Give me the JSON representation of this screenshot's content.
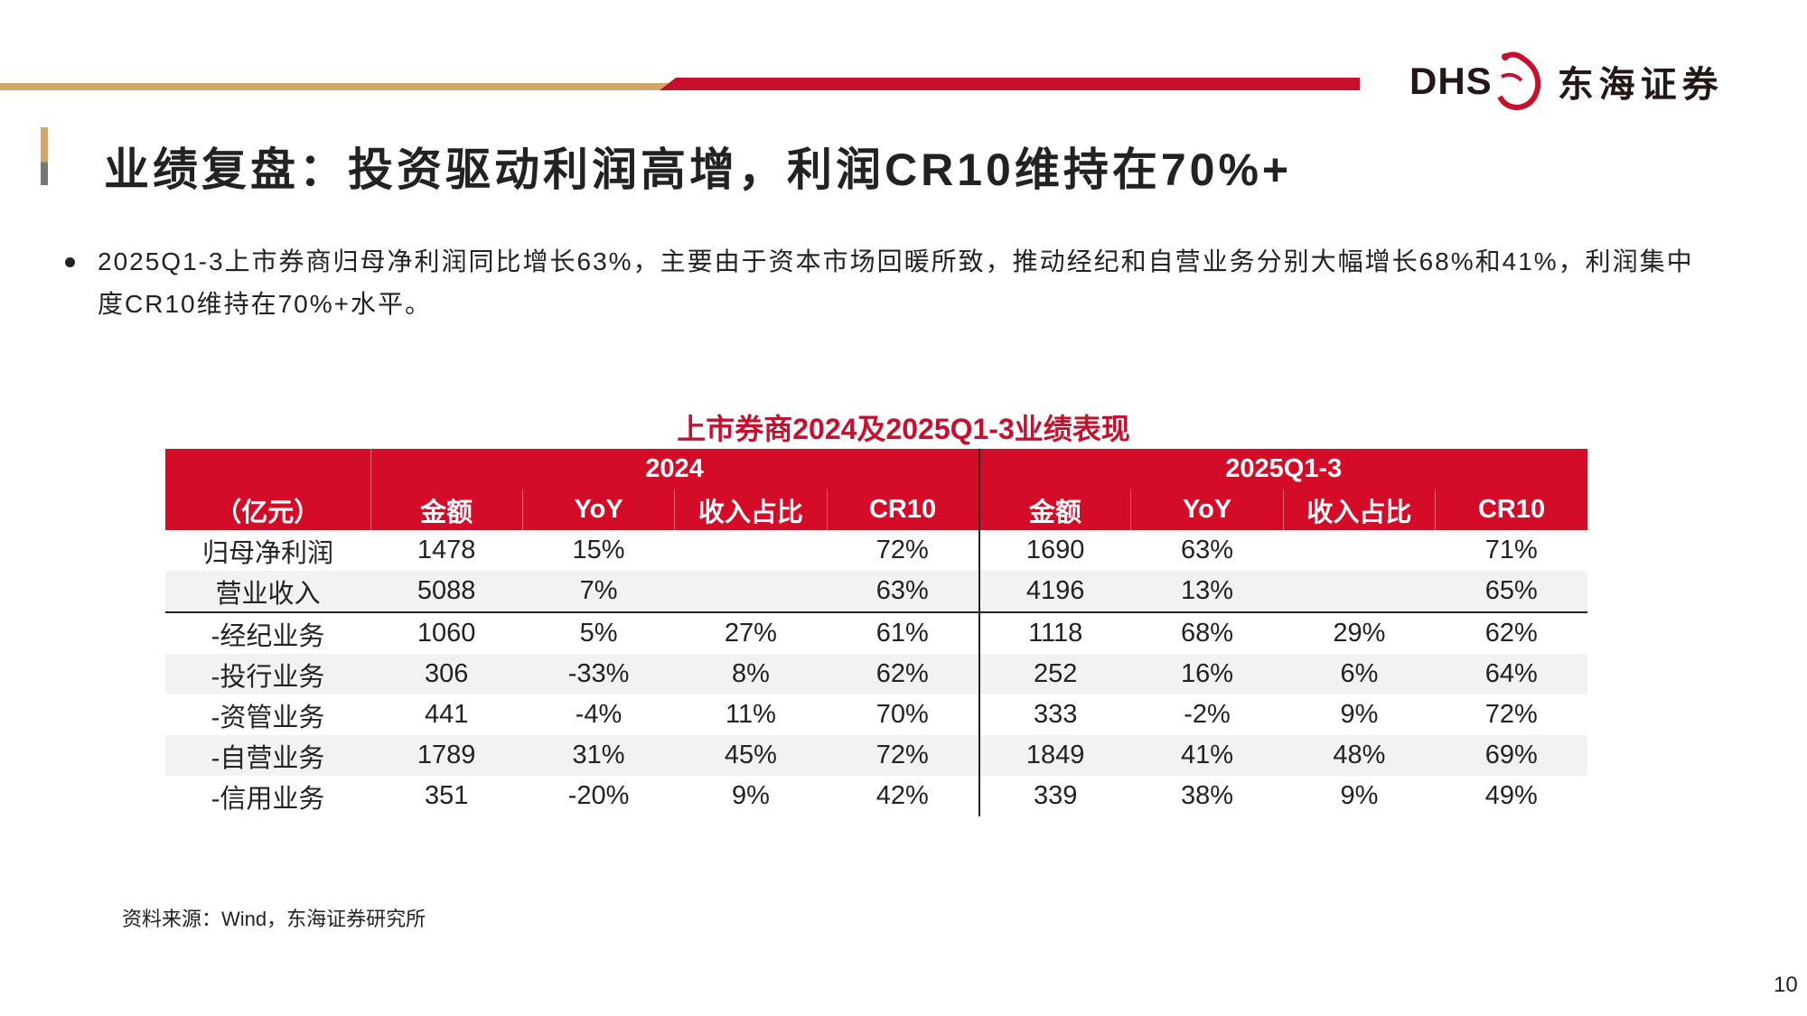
{
  "logo": {
    "latin": "DHS",
    "chinese": "东海证券",
    "brand_color": "#c8102e"
  },
  "title": "业绩复盘：投资驱动利润高增，利润CR10维持在70%+",
  "bullet": "2025Q1-3上市券商归母净利润同比增长63%，主要由于资本市场回暖所致，推动经纪和自营业务分别大幅增长68%和41%，利润集中度CR10维持在70%+水平。",
  "table": {
    "caption": "上市券商2024及2025Q1-3业绩表现",
    "unit": "（亿元）",
    "groups": [
      "2024",
      "2025Q1-3"
    ],
    "columns": [
      "金额",
      "YoY",
      "收入占比",
      "CR10",
      "金额",
      "YoY",
      "收入占比",
      "CR10"
    ],
    "rows": [
      {
        "label": "归母净利润",
        "cells": [
          "1478",
          "15%",
          "",
          "72%",
          "1690",
          "63%",
          "",
          "71%"
        ]
      },
      {
        "label": "营业收入",
        "cells": [
          "5088",
          "7%",
          "",
          "63%",
          "4196",
          "13%",
          "",
          "65%"
        ]
      },
      {
        "label": "-经纪业务",
        "cells": [
          "1060",
          "5%",
          "27%",
          "61%",
          "1118",
          "68%",
          "29%",
          "62%"
        ]
      },
      {
        "label": "-投行业务",
        "cells": [
          "306",
          "-33%",
          "8%",
          "62%",
          "252",
          "16%",
          "6%",
          "64%"
        ]
      },
      {
        "label": "-资管业务",
        "cells": [
          "441",
          "-4%",
          "11%",
          "70%",
          "333",
          "-2%",
          "9%",
          "72%"
        ]
      },
      {
        "label": "-自营业务",
        "cells": [
          "1789",
          "31%",
          "45%",
          "72%",
          "1849",
          "41%",
          "48%",
          "69%"
        ]
      },
      {
        "label": "-信用业务",
        "cells": [
          "351",
          "-20%",
          "9%",
          "42%",
          "339",
          "38%",
          "9%",
          "49%"
        ]
      }
    ]
  },
  "source": "资料来源：Wind，东海证券研究所",
  "page_number": "10"
}
